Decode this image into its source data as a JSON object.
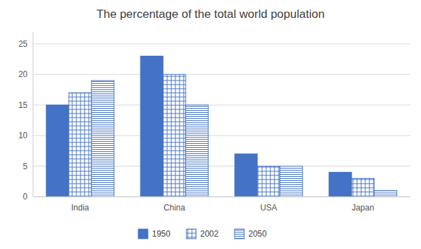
{
  "chart_data": {
    "type": "bar",
    "title": "The percentage of the total world population",
    "categories": [
      "India",
      "China",
      "USA",
      "Japan"
    ],
    "series": [
      {
        "name": "1950",
        "color": "#4472C4",
        "values": [
          15,
          23,
          7,
          4
        ]
      },
      {
        "name": "2002",
        "color": "#4472C4",
        "values": [
          17,
          20,
          5,
          3
        ]
      },
      {
        "name": "2050",
        "color": "#4472C4",
        "values": [
          19,
          15,
          5,
          1
        ]
      }
    ],
    "ylim": [
      0,
      27
    ],
    "yticks": [
      0,
      5,
      10,
      15,
      20,
      25
    ],
    "grid": true,
    "legend": "bottom"
  }
}
